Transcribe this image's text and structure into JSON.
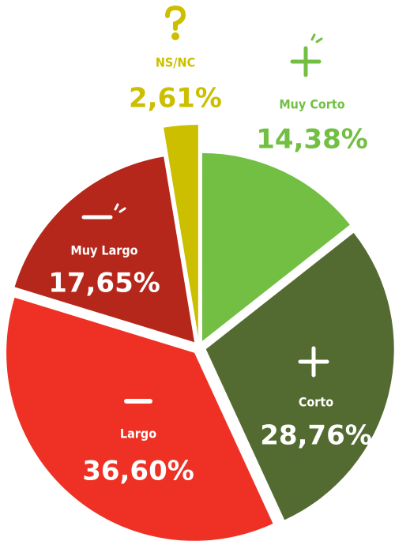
{
  "chart_data": {
    "type": "pie",
    "categories": [
      "Muy Corto",
      "Corto",
      "Largo",
      "Muy Largo",
      "NS/NC"
    ],
    "values": [
      14.38,
      28.76,
      36.6,
      17.65,
      2.61
    ],
    "value_labels": [
      "14,38%",
      "28,76%",
      "36,60%",
      "17,65%",
      "2,61%"
    ],
    "colors": [
      "#72bf44",
      "#536b30",
      "#ee3124",
      "#b5271a",
      "#cbbf00"
    ]
  }
}
